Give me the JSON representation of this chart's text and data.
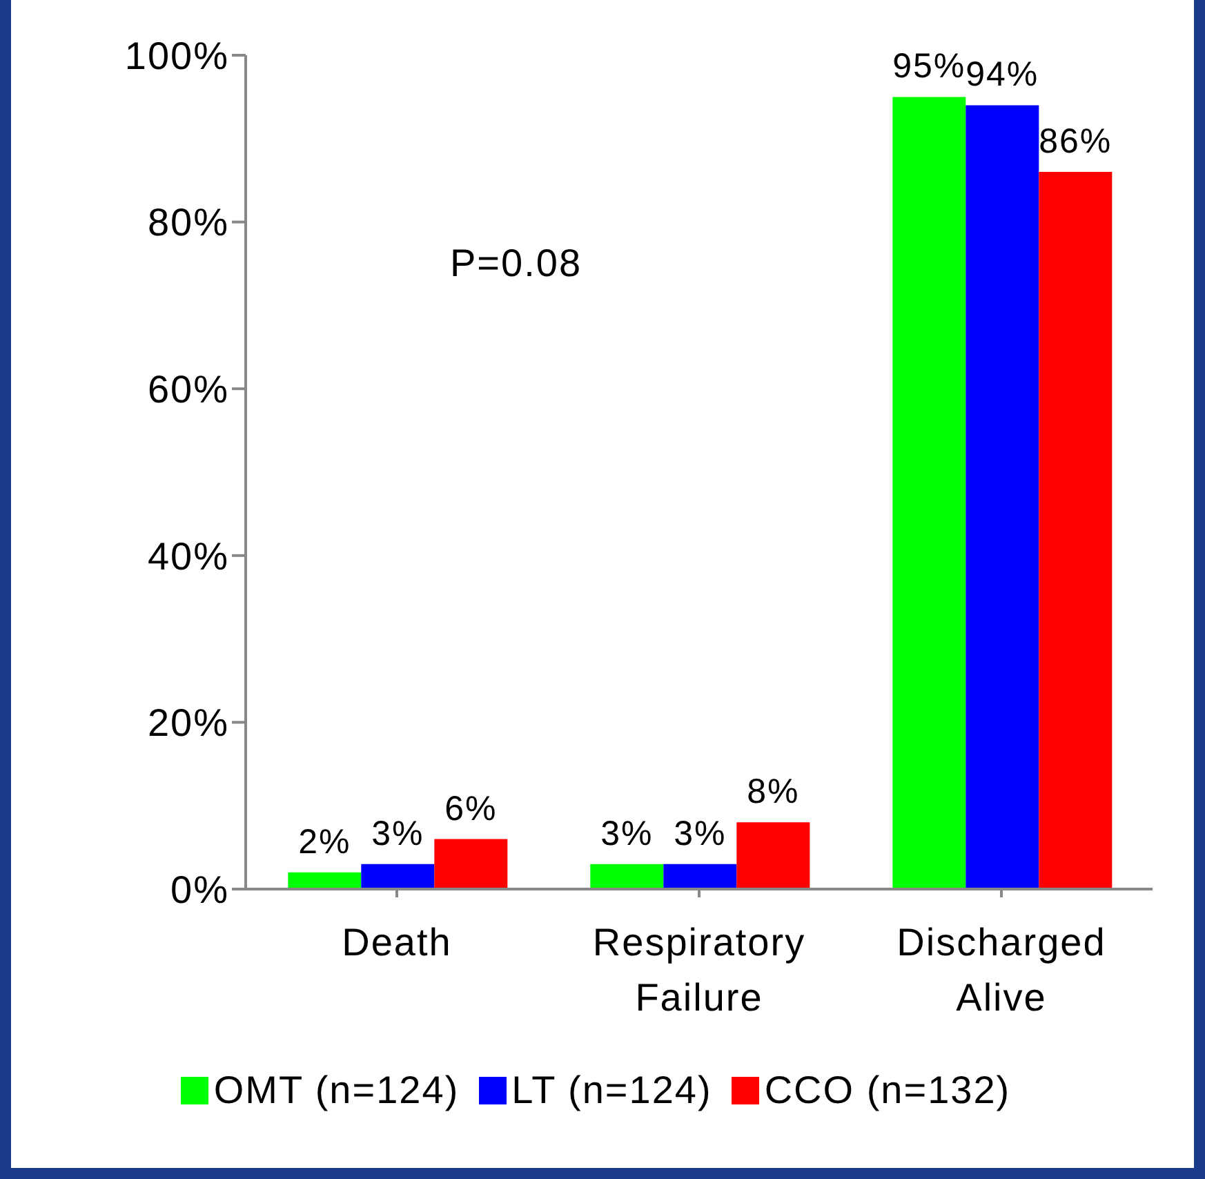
{
  "chart_data": {
    "type": "bar",
    "categories": [
      "Death",
      "Respiratory Failure",
      "Discharged Alive"
    ],
    "series": [
      {
        "name": "OMT (n=124)",
        "color": "#00ff00",
        "values": [
          2,
          3,
          95
        ],
        "value_labels": [
          "2%",
          "3%",
          "95%"
        ]
      },
      {
        "name": "LT (n=124)",
        "color": "#0000ff",
        "values": [
          3,
          3,
          94
        ],
        "value_labels": [
          "3%",
          "3%",
          "94%"
        ]
      },
      {
        "name": "CCO (n=132)",
        "color": "#ff0000",
        "values": [
          6,
          8,
          86
        ],
        "value_labels": [
          "6%",
          "8%",
          "86%"
        ]
      }
    ],
    "ylim": [
      0,
      100
    ],
    "yticks": [
      {
        "value": 0,
        "label": "0%"
      },
      {
        "value": 20,
        "label": "20%"
      },
      {
        "value": 40,
        "label": "40%"
      },
      {
        "value": 60,
        "label": "60%"
      },
      {
        "value": 80,
        "label": "80%"
      },
      {
        "value": 100,
        "label": "100%"
      }
    ],
    "annotations": [
      "P=0.08"
    ],
    "grid": false,
    "legend": "bottom"
  }
}
